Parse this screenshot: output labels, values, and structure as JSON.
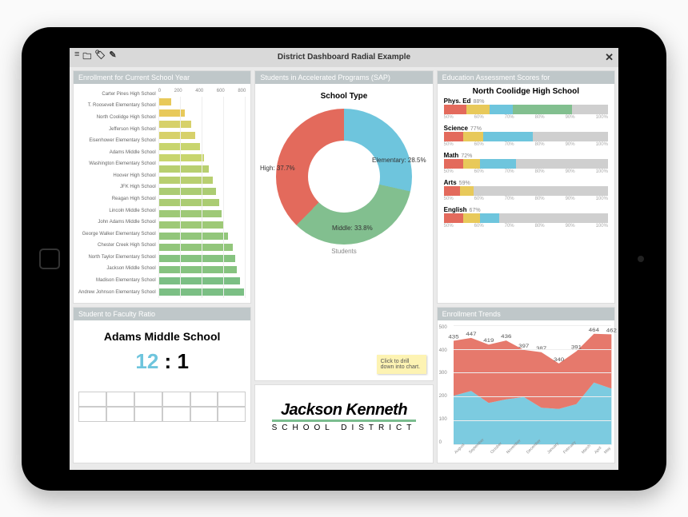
{
  "titlebar": {
    "title": "District Dashboard Radial Example"
  },
  "palette": {
    "red": "#e36a5c",
    "blue": "#6ec5dd",
    "green": "#82bf8f",
    "yellow": "#e8c95a",
    "neutral": "#cfcfcf",
    "olive": "#b8c96e"
  },
  "enrollment": {
    "title": "Enrollment for Current School Year",
    "xticks": [
      "0",
      "200",
      "400",
      "600",
      "800"
    ],
    "xmax": 800,
    "schools": [
      {
        "name": "Carter Pines High School",
        "value": 120,
        "color": "#e8c95a"
      },
      {
        "name": "T. Roosevelt Elementary School",
        "value": 240,
        "color": "#e8c95a"
      },
      {
        "name": "North Coolidge High School",
        "value": 300,
        "color": "#d7d16a"
      },
      {
        "name": "Jefferson High School",
        "value": 340,
        "color": "#d7d16a"
      },
      {
        "name": "Eisenhower Elementary School",
        "value": 380,
        "color": "#c8d56e"
      },
      {
        "name": "Adams Middle School",
        "value": 420,
        "color": "#c8d56e"
      },
      {
        "name": "Washington Elementary School",
        "value": 460,
        "color": "#b8cf70"
      },
      {
        "name": "Hoover High School",
        "value": 500,
        "color": "#b8cf70"
      },
      {
        "name": "JFK High School",
        "value": 530,
        "color": "#abcc73"
      },
      {
        "name": "Reagan High School",
        "value": 560,
        "color": "#abcc73"
      },
      {
        "name": "Lincoln Middle School",
        "value": 580,
        "color": "#9ec977"
      },
      {
        "name": "John Adams Middle School",
        "value": 600,
        "color": "#9ec977"
      },
      {
        "name": "George Walker Elementary School",
        "value": 640,
        "color": "#92c67b"
      },
      {
        "name": "Chester Creek High School",
        "value": 680,
        "color": "#92c67b"
      },
      {
        "name": "North Taylor Elementary School",
        "value": 700,
        "color": "#86c380"
      },
      {
        "name": "Jackson Middle School",
        "value": 720,
        "color": "#86c380"
      },
      {
        "name": "Madison Elementary School",
        "value": 750,
        "color": "#7bbf84"
      },
      {
        "name": "Andrew Johnson Elementary School",
        "value": 780,
        "color": "#7bbf84"
      }
    ]
  },
  "ratio": {
    "title": "Student to Faculty Ratio",
    "school": "Adams Middle School",
    "student": 12,
    "faculty": 1,
    "color": "#6ec5dd"
  },
  "donut": {
    "title": "Students in Accelerated Programs (SAP)",
    "center_title": "School Type",
    "axis_label": "Students",
    "sticky_note": "Click to drill down into chart.",
    "slices": [
      {
        "label": "Elementary",
        "pct": 28.5,
        "color": "#6ec5dd"
      },
      {
        "label": "Middle",
        "pct": 33.8,
        "color": "#82bf8f"
      },
      {
        "label": "High",
        "pct": 37.7,
        "color": "#e36a5c"
      }
    ]
  },
  "logo": {
    "main": "Jackson Kenneth",
    "sub": "SCHOOL DISTRICT"
  },
  "assessment": {
    "title": "Education Assessment Scores for",
    "school": "North Coolidge High School",
    "ticks": [
      "50%",
      "60%",
      "70%",
      "80%",
      "90%",
      "100%"
    ],
    "subjects": [
      {
        "name": "Phys. Ed",
        "pct": 88,
        "segments": [
          {
            "w": 14,
            "c": "#e36a5c"
          },
          {
            "w": 14,
            "c": "#e8c95a"
          },
          {
            "w": 14,
            "c": "#6ec5dd"
          },
          {
            "w": 36,
            "c": "#82bf8f"
          },
          {
            "w": 22,
            "c": "#cfcfcf"
          }
        ]
      },
      {
        "name": "Science",
        "pct": 77,
        "segments": [
          {
            "w": 12,
            "c": "#e36a5c"
          },
          {
            "w": 12,
            "c": "#e8c95a"
          },
          {
            "w": 30,
            "c": "#6ec5dd"
          },
          {
            "w": 46,
            "c": "#cfcfcf"
          }
        ]
      },
      {
        "name": "Math",
        "pct": 72,
        "segments": [
          {
            "w": 12,
            "c": "#e36a5c"
          },
          {
            "w": 10,
            "c": "#e8c95a"
          },
          {
            "w": 22,
            "c": "#6ec5dd"
          },
          {
            "w": 56,
            "c": "#cfcfcf"
          }
        ]
      },
      {
        "name": "Arts",
        "pct": 59,
        "segments": [
          {
            "w": 10,
            "c": "#e36a5c"
          },
          {
            "w": 8,
            "c": "#e8c95a"
          },
          {
            "w": 82,
            "c": "#cfcfcf"
          }
        ]
      },
      {
        "name": "English",
        "pct": 67,
        "segments": [
          {
            "w": 12,
            "c": "#e36a5c"
          },
          {
            "w": 10,
            "c": "#e8c95a"
          },
          {
            "w": 12,
            "c": "#6ec5dd"
          },
          {
            "w": 66,
            "c": "#cfcfcf"
          }
        ]
      }
    ]
  },
  "trends": {
    "title": "Enrollment Trends",
    "ymax": 500,
    "yticks": [
      "0",
      "100",
      "200",
      "300",
      "400",
      "500"
    ],
    "months": [
      "August",
      "September",
      "October",
      "November",
      "December",
      "January",
      "February",
      "March",
      "April",
      "May"
    ],
    "series": {
      "upper": {
        "color": "#e36a5c",
        "values": [
          435,
          447,
          419,
          436,
          397,
          387,
          340,
          391,
          464,
          462
        ]
      },
      "lower": {
        "color": "#6ec5dd",
        "values": [
          205,
          225,
          175,
          190,
          200,
          155,
          150,
          170,
          260,
          235
        ]
      }
    }
  }
}
